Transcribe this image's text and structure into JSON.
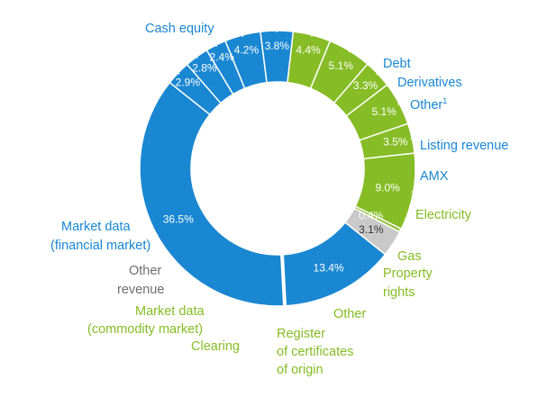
{
  "chart_data": {
    "type": "pie",
    "donut": true,
    "title": "",
    "colors": {
      "blue": "#1A87D2",
      "green": "#86BC25",
      "gray": "#C9C9C9",
      "gray_text": "#6E6E6E"
    },
    "slices": [
      {
        "name": "Cash equity",
        "value": 36.5,
        "label": "36.5%",
        "color": "blue"
      },
      {
        "name": "Debt",
        "value": 2.9,
        "label": "2.9%",
        "color": "blue"
      },
      {
        "name": "Derivatives",
        "value": 2.8,
        "label": "2.8%",
        "color": "blue"
      },
      {
        "name": "Other",
        "footnote": "1",
        "value": 2.4,
        "label": "2.4%",
        "color": "blue"
      },
      {
        "name": "Listing revenue",
        "value": 4.2,
        "label": "4.2%",
        "color": "blue"
      },
      {
        "name": "AMX",
        "value": 3.8,
        "label": "3.8%",
        "color": "blue"
      },
      {
        "name": "Electricity",
        "value": 4.4,
        "label": "4.4%",
        "color": "green"
      },
      {
        "name": "Gas",
        "value": 5.1,
        "label": "5.1%",
        "color": "green"
      },
      {
        "name": "Property rights",
        "value": 3.3,
        "label": "3.3%",
        "color": "green"
      },
      {
        "name": "Other",
        "value": 5.1,
        "label": "5.1%",
        "color": "green"
      },
      {
        "name": "Register of certificates of origin",
        "value": 3.5,
        "label": "3.5%",
        "color": "green"
      },
      {
        "name": "Clearing",
        "value": 9.0,
        "label": "9.0%",
        "color": "green"
      },
      {
        "name": "Market data (commodity market)",
        "value": 0.4,
        "label": "0.4%",
        "color": "green"
      },
      {
        "name": "Other revenue",
        "value": 3.1,
        "label": "3.1%",
        "color": "gray"
      },
      {
        "name": "Market data (financial market)",
        "value": 13.4,
        "label": "13.4%",
        "color": "blue"
      }
    ]
  },
  "labels": {
    "cash_equity": "Cash equity",
    "debt": "Debt",
    "derivatives": "Derivatives",
    "other_fin": "Other",
    "other_fin_sup": "1",
    "listing": "Listing revenue",
    "amx": "AMX",
    "electricity": "Electricity",
    "gas": "Gas",
    "property_1": "Property",
    "property_2": "rights",
    "other_com": "Other",
    "register_1": "Register",
    "register_2": "of certificates",
    "register_3": "of origin",
    "clearing": "Clearing",
    "mdc_1": "Market data",
    "mdc_2": "(commodity market)",
    "other_rev_1": "Other",
    "other_rev_2": "revenue",
    "mdf_1": "Market data",
    "mdf_2": "(financial market)"
  }
}
